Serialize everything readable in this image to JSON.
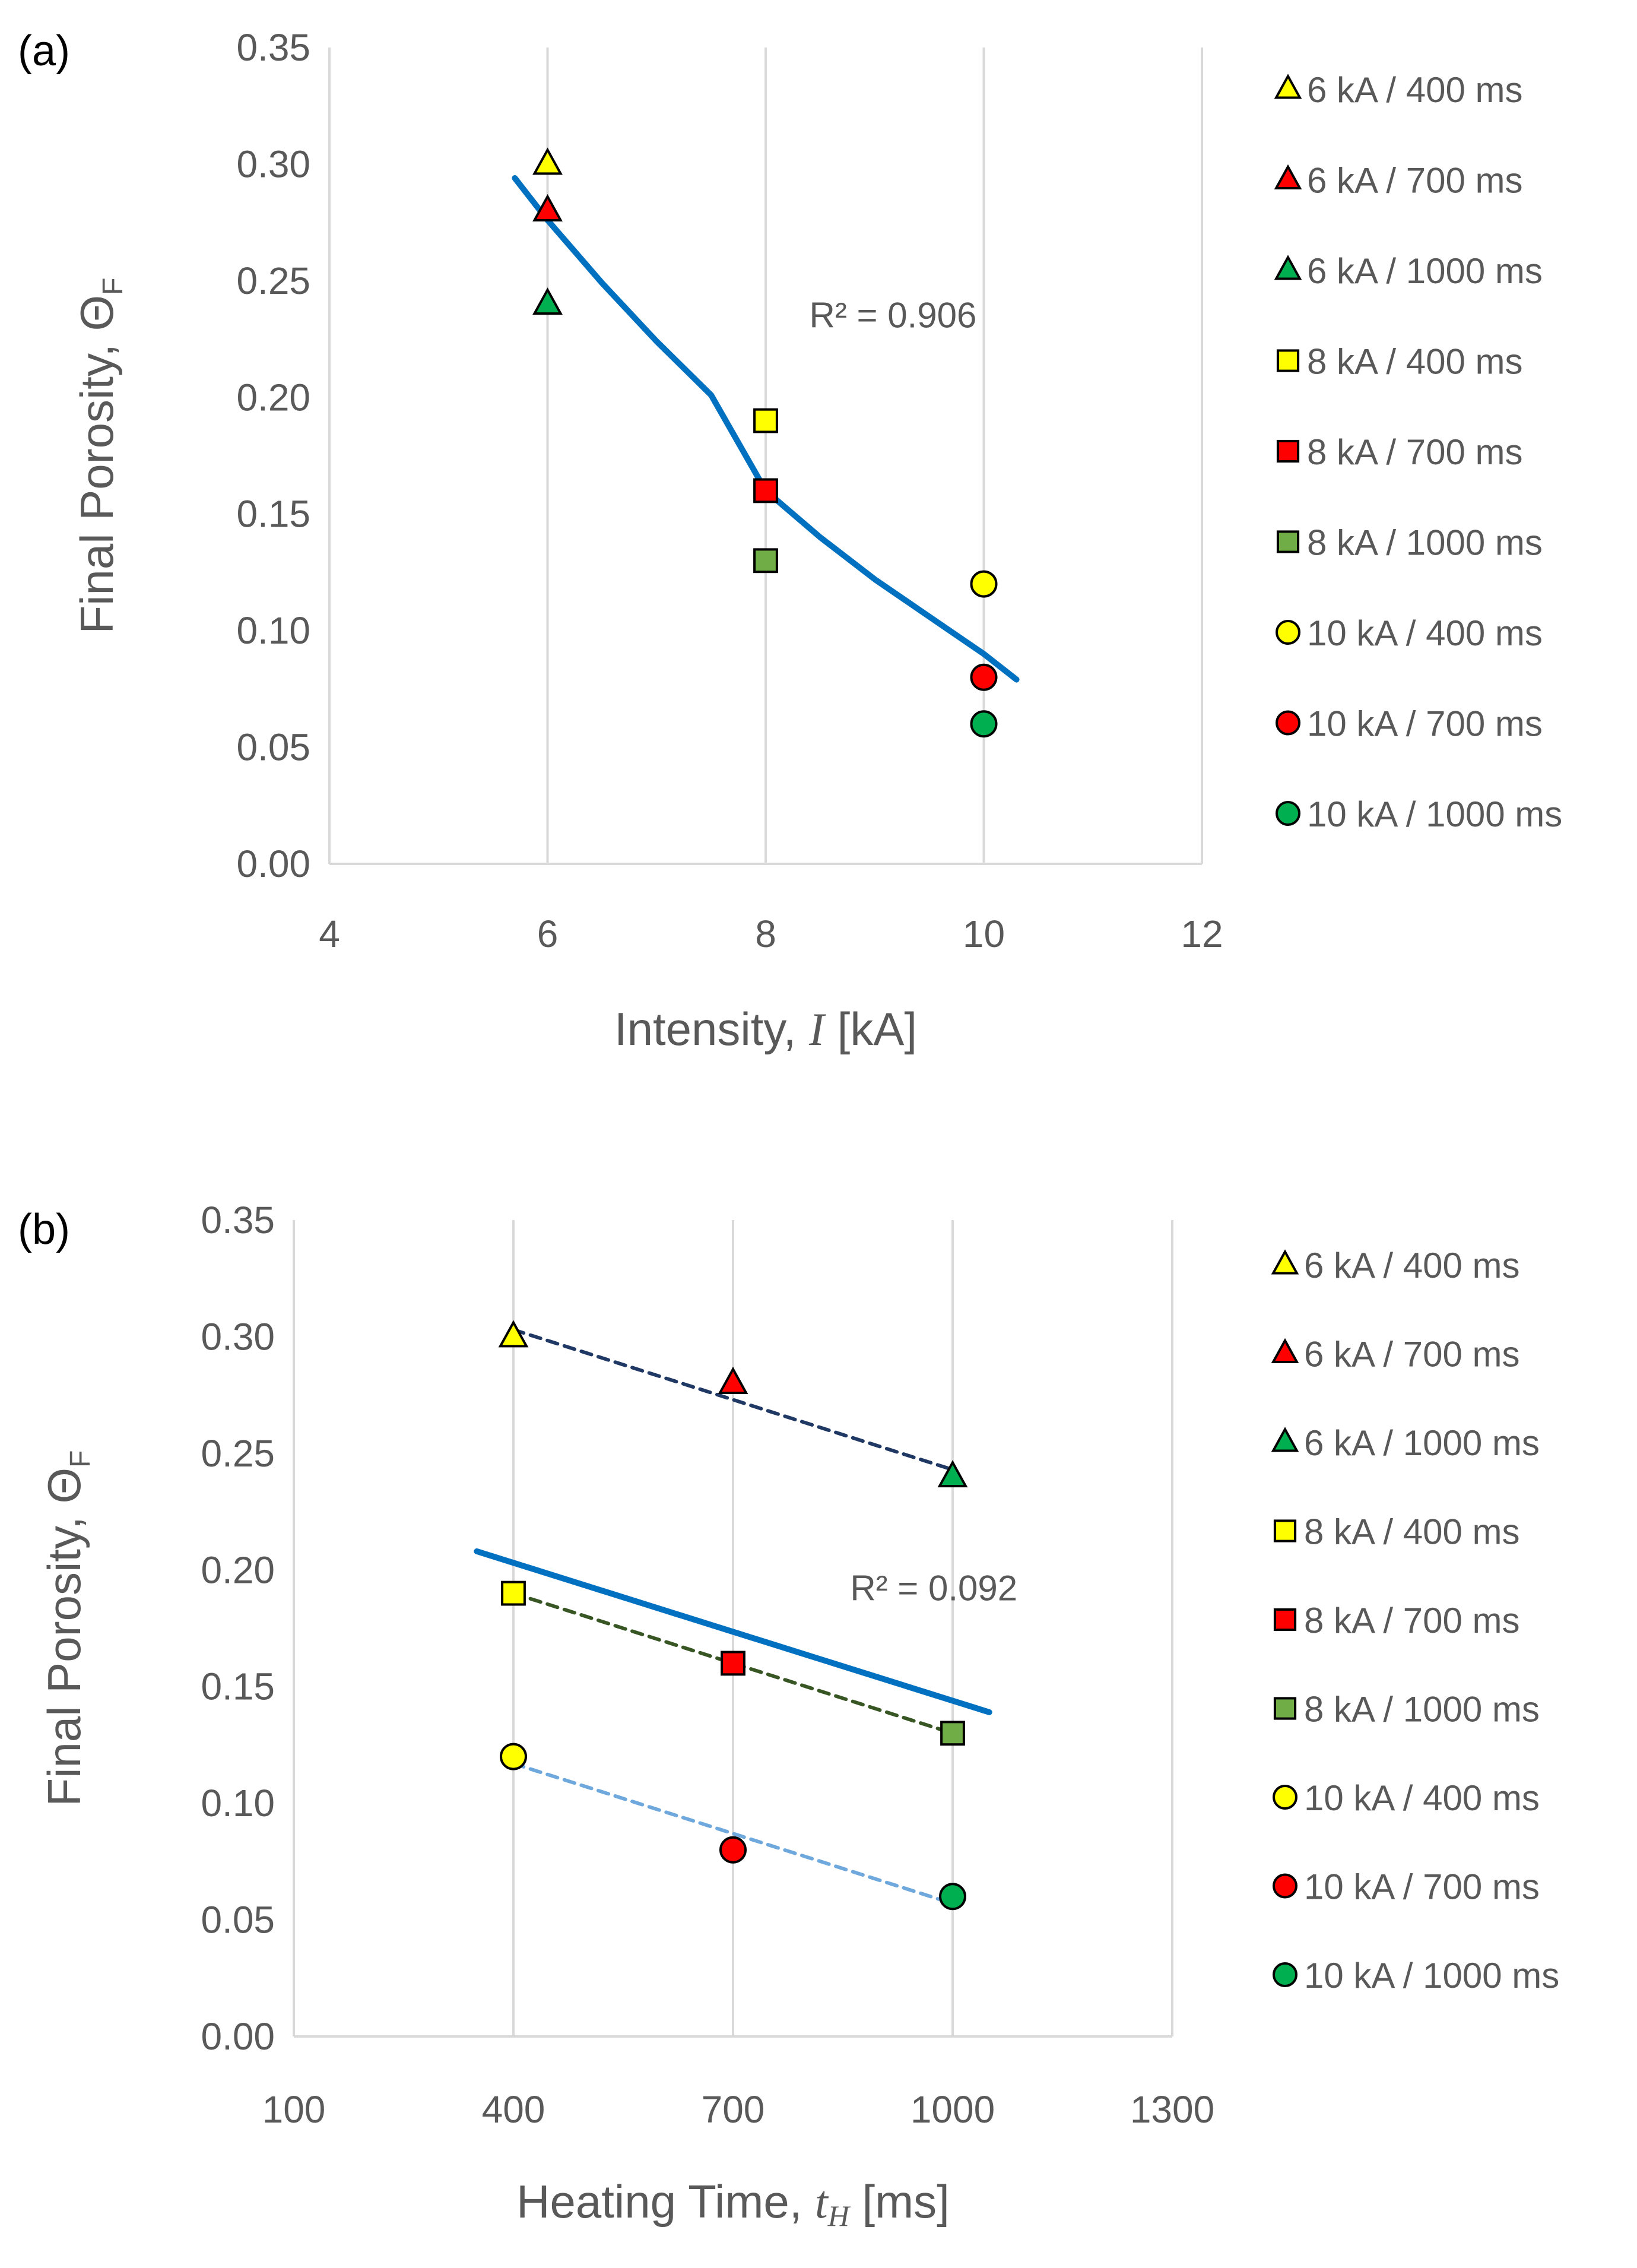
{
  "chart_data": [
    {
      "panel_label": "(a)",
      "type": "scatter",
      "xlabel_prefix": "Intensity, ",
      "xlabel_var": "I",
      "xlabel_unit": " [kA]",
      "ylabel_prefix": "Final Porosity, ",
      "ylabel_symbol": "Θ",
      "ylabel_sub": "F",
      "xlim": [
        4,
        12
      ],
      "ylim": [
        0,
        0.35
      ],
      "xticks": [
        4,
        6,
        8,
        10,
        12
      ],
      "xtick_labels": [
        "4",
        "6",
        "8",
        "10",
        "12"
      ],
      "yticks": [
        0,
        0.05,
        0.1,
        0.15,
        0.2,
        0.25,
        0.3,
        0.35
      ],
      "ytick_labels": [
        "0.00",
        "0.05",
        "0.10",
        "0.15",
        "0.20",
        "0.25",
        "0.30",
        "0.35"
      ],
      "grid": "vertical",
      "legend_position": "right",
      "series": [
        {
          "name": "6 kA / 400 ms",
          "marker": "triangle",
          "color": "#FFFF00",
          "x": 6,
          "y": 0.3
        },
        {
          "name": "6 kA / 700 ms",
          "marker": "triangle",
          "color": "#FF0000",
          "x": 6,
          "y": 0.28
        },
        {
          "name": "6 kA / 1000 ms",
          "marker": "triangle",
          "color": "#00B050",
          "x": 6,
          "y": 0.24
        },
        {
          "name": "8 kA / 400 ms",
          "marker": "square",
          "color": "#FFFF00",
          "x": 8,
          "y": 0.19
        },
        {
          "name": "8 kA / 700 ms",
          "marker": "square",
          "color": "#FF0000",
          "x": 8,
          "y": 0.16
        },
        {
          "name": "8 kA / 1000 ms",
          "marker": "square",
          "color": "#70AD47",
          "x": 8,
          "y": 0.13
        },
        {
          "name": "10 kA / 400 ms",
          "marker": "circle",
          "color": "#FFFF00",
          "x": 10,
          "y": 0.12
        },
        {
          "name": "10 kA / 700 ms",
          "marker": "circle",
          "color": "#FF0000",
          "x": 10,
          "y": 0.08
        },
        {
          "name": "10 kA / 1000 ms",
          "marker": "circle",
          "color": "#00B050",
          "x": 10,
          "y": 0.06
        }
      ],
      "trendlines": [
        {
          "kind": "fit",
          "color": "#0070C0",
          "style": "solid",
          "x": [
            5.7,
            6,
            6.5,
            7,
            7.5,
            8,
            8.5,
            9,
            9.5,
            10,
            10.3
          ],
          "y": [
            0.294,
            0.276,
            0.249,
            0.224,
            0.201,
            0.16,
            0.14,
            0.122,
            0.106,
            0.09,
            0.079
          ]
        }
      ],
      "r2_text": "R² = 0.906",
      "r2_at": {
        "x": 8.4,
        "y": 0.23
      }
    },
    {
      "panel_label": "(b)",
      "type": "scatter",
      "xlabel_prefix": "Heating Time, ",
      "xlabel_var": "t",
      "xlabel_var_sub": "H",
      "xlabel_unit": " [ms]",
      "ylabel_prefix": "Final Porosity, ",
      "ylabel_symbol": "Θ",
      "ylabel_sub": "F",
      "xlim": [
        100,
        1300
      ],
      "ylim": [
        0,
        0.35
      ],
      "xticks": [
        100,
        400,
        700,
        1000,
        1300
      ],
      "xtick_labels": [
        "100",
        "400",
        "700",
        "1000",
        "1300"
      ],
      "yticks": [
        0,
        0.05,
        0.1,
        0.15,
        0.2,
        0.25,
        0.3,
        0.35
      ],
      "ytick_labels": [
        "0.00",
        "0.05",
        "0.10",
        "0.15",
        "0.20",
        "0.25",
        "0.30",
        "0.35"
      ],
      "grid": "vertical",
      "legend_position": "right",
      "series": [
        {
          "name": "6 kA / 400 ms",
          "marker": "triangle",
          "color": "#FFFF00",
          "x": 400,
          "y": 0.3
        },
        {
          "name": "6 kA / 700 ms",
          "marker": "triangle",
          "color": "#FF0000",
          "x": 700,
          "y": 0.28
        },
        {
          "name": "6 kA / 1000 ms",
          "marker": "triangle",
          "color": "#00B050",
          "x": 1000,
          "y": 0.24
        },
        {
          "name": "8 kA / 400 ms",
          "marker": "square",
          "color": "#FFFF00",
          "x": 400,
          "y": 0.19
        },
        {
          "name": "8 kA / 700 ms",
          "marker": "square",
          "color": "#FF0000",
          "x": 700,
          "y": 0.16
        },
        {
          "name": "8 kA / 1000 ms",
          "marker": "square",
          "color": "#70AD47",
          "x": 1000,
          "y": 0.13
        },
        {
          "name": "10 kA / 400 ms",
          "marker": "circle",
          "color": "#FFFF00",
          "x": 400,
          "y": 0.12
        },
        {
          "name": "10 kA / 700 ms",
          "marker": "circle",
          "color": "#FF0000",
          "x": 700,
          "y": 0.08
        },
        {
          "name": "10 kA / 1000 ms",
          "marker": "circle",
          "color": "#00B050",
          "x": 1000,
          "y": 0.06
        }
      ],
      "trendlines": [
        {
          "kind": "6kA",
          "color": "#203864",
          "style": "dashed",
          "x": [
            400,
            1000
          ],
          "y": [
            0.303,
            0.243
          ]
        },
        {
          "kind": "8kA",
          "color": "#375623",
          "style": "dashed",
          "x": [
            400,
            1000
          ],
          "y": [
            0.19,
            0.13
          ]
        },
        {
          "kind": "10kA",
          "color": "#6FA8DC",
          "style": "dashed",
          "x": [
            400,
            1000
          ],
          "y": [
            0.117,
            0.057
          ]
        },
        {
          "kind": "overall",
          "color": "#0070C0",
          "style": "solid",
          "x": [
            350,
            1050
          ],
          "y": [
            0.208,
            0.139
          ]
        }
      ],
      "r2_text": "R² = 0.092",
      "r2_at": {
        "x": 860,
        "y": 0.187
      }
    }
  ]
}
